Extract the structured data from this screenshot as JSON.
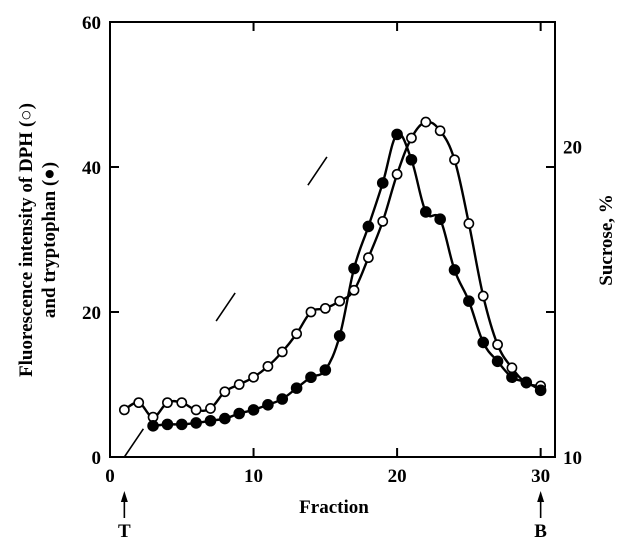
{
  "chart_data": {
    "type": "line",
    "xlabel": "Fraction",
    "ylabel_line1": "Fluorescence intensity of DPH (○)",
    "ylabel_line2": "and tryptophan (●)",
    "y2label": "Sucrose, %",
    "xlim": [
      0,
      31
    ],
    "ylim": [
      0,
      60
    ],
    "y2lim": [
      10,
      24
    ],
    "xticks": [
      0,
      10,
      20,
      30
    ],
    "yticks": [
      0,
      20,
      40,
      60
    ],
    "y2ticks": [
      10,
      20
    ],
    "markers": [
      {
        "label": "T",
        "x": 1
      },
      {
        "label": "B",
        "x": 30
      }
    ],
    "series": [
      {
        "marker": "open-circle",
        "x": [
          1,
          2,
          3,
          4,
          5,
          6,
          7,
          8,
          9,
          10,
          11,
          12,
          13,
          14,
          15,
          16,
          17,
          18,
          19,
          20,
          21,
          22,
          23,
          24,
          25,
          26,
          27,
          28,
          29,
          30
        ],
        "y": [
          6.5,
          7.5,
          5.5,
          7.5,
          7.5,
          6.5,
          6.7,
          9,
          10,
          11,
          12.5,
          14.5,
          17,
          20,
          20.5,
          21.5,
          23,
          27.5,
          32.5,
          39,
          44,
          46.2,
          45,
          41,
          32.2,
          22.2,
          15.5,
          12.3,
          10.2,
          9.8
        ]
      },
      {
        "marker": "filled-circle",
        "x": [
          3,
          4,
          5,
          6,
          7,
          8,
          9,
          10,
          11,
          12,
          13,
          14,
          15,
          16,
          17,
          18,
          19,
          20,
          21,
          22,
          23,
          24,
          25,
          26,
          27,
          28,
          29,
          30
        ],
        "y": [
          4.3,
          4.5,
          4.5,
          4.7,
          5,
          5.3,
          6,
          6.5,
          7.2,
          8,
          9.5,
          11,
          12,
          16.7,
          26,
          31.8,
          37.8,
          44.5,
          41,
          33.8,
          32.8,
          25.8,
          21.5,
          15.8,
          13.2,
          11,
          10.3,
          9.2
        ]
      }
    ],
    "sucrose_gradient": [
      {
        "x": 1,
        "y": 10
      },
      {
        "x": 20,
        "y": 23
      }
    ]
  }
}
